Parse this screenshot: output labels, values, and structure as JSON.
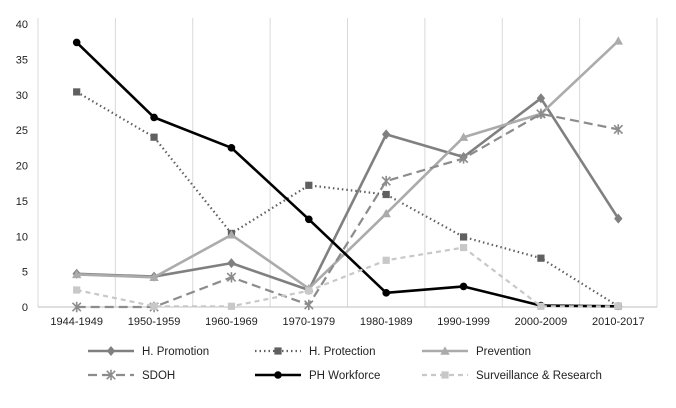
{
  "chart_data": {
    "type": "line",
    "title": "",
    "xlabel": "",
    "ylabel": "",
    "ylim": [
      0,
      40
    ],
    "yticks": [
      0,
      5,
      10,
      15,
      20,
      25,
      30,
      35,
      40
    ],
    "grid": "vertical",
    "legend": "bottom",
    "categories": [
      "1944-1949",
      "1950-1959",
      "1960-1969",
      "1970-1979",
      "1980-1989",
      "1990-1999",
      "2000-2009",
      "2010-2017"
    ],
    "series": [
      {
        "name": "H. Promotion",
        "color": "#808080",
        "dash": "solid",
        "marker": "diamond",
        "values": [
          4.7,
          4.3,
          6.2,
          2.4,
          24.4,
          21.2,
          29.5,
          12.5
        ]
      },
      {
        "name": "H. Protection",
        "color": "#606060",
        "dash": "dotted",
        "marker": "square",
        "values": [
          30.4,
          24.0,
          10.4,
          17.2,
          15.9,
          9.9,
          6.9,
          0.1
        ]
      },
      {
        "name": "Prevention",
        "color": "#ababab",
        "dash": "solid",
        "marker": "triangle",
        "values": [
          4.6,
          4.2,
          10.2,
          2.6,
          13.2,
          24.0,
          27.3,
          37.6
        ]
      },
      {
        "name": "SDOH",
        "color": "#8c8c8c",
        "dash": "longdash",
        "marker": "x",
        "values": [
          0.0,
          0.0,
          4.2,
          0.3,
          17.8,
          21.0,
          27.3,
          25.1
        ]
      },
      {
        "name": "PH Workforce",
        "color": "#000000",
        "dash": "solid",
        "marker": "circle",
        "values": [
          37.4,
          26.8,
          22.5,
          12.4,
          2.0,
          2.9,
          0.2,
          0.1
        ]
      },
      {
        "name": "Surveillance & Research",
        "color": "#c8c8c8",
        "dash": "shortdash",
        "marker": "square",
        "values": [
          2.4,
          0.1,
          0.1,
          2.3,
          6.6,
          8.4,
          0.1,
          0.1
        ]
      }
    ]
  }
}
